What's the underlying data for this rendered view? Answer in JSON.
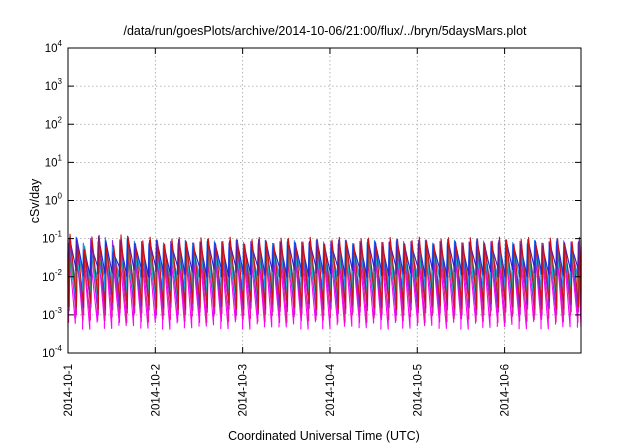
{
  "chart_data": {
    "type": "line",
    "title": "/data/run/goesPlots/archive/2014-10-06/21:00/flux/../bryn/5daysMars.plot",
    "xlabel": "Coordinated Universal Time (UTC)",
    "ylabel": "cSv/day",
    "yscale": "log",
    "ylim": [
      0.0001,
      10000
    ],
    "xlim": [
      "2014-10-01T00:00",
      "2014-10-06T21:00"
    ],
    "grid": true,
    "legend": "none",
    "x_ticks": [
      "2014-10-1",
      "2014-10-2",
      "2014-10-3",
      "2014-10-4",
      "2014-10-5",
      "2014-10-6"
    ],
    "y_ticks": [
      {
        "value": 0.0001,
        "base": "10",
        "exp": "-4"
      },
      {
        "value": 0.001,
        "base": "10",
        "exp": "-3"
      },
      {
        "value": 0.01,
        "base": "10",
        "exp": "-2"
      },
      {
        "value": 0.1,
        "base": "10",
        "exp": "-1"
      },
      {
        "value": 1,
        "base": "10",
        "exp": "0"
      },
      {
        "value": 10,
        "base": "10",
        "exp": "1"
      },
      {
        "value": 100,
        "base": "10",
        "exp": "2"
      },
      {
        "value": 1000,
        "base": "10",
        "exp": "3"
      },
      {
        "value": 10000,
        "base": "10",
        "exp": "4"
      }
    ],
    "cycle_hours": 2.0,
    "series": [
      {
        "color": "#ff00ff",
        "peak": 0.05,
        "trough": 0.0006
      },
      {
        "color": "#e6189e",
        "peak": 0.06,
        "trough": 0.0009
      },
      {
        "color": "#c81ec8",
        "peak": 0.065,
        "trough": 0.0014
      },
      {
        "color": "#8a2be2",
        "peak": 0.07,
        "trough": 0.0022
      },
      {
        "color": "#00c8c8",
        "peak": 0.04,
        "trough": 0.004
      },
      {
        "color": "#2aa84a",
        "peak": 0.045,
        "trough": 0.006
      },
      {
        "color": "#1e90ff",
        "peak": 0.075,
        "trough": 0.009
      },
      {
        "color": "#2020e0",
        "peak": 0.08,
        "trough": 0.014
      },
      {
        "color": "#d01010",
        "peak": 0.09,
        "trough": 0.002
      }
    ]
  }
}
